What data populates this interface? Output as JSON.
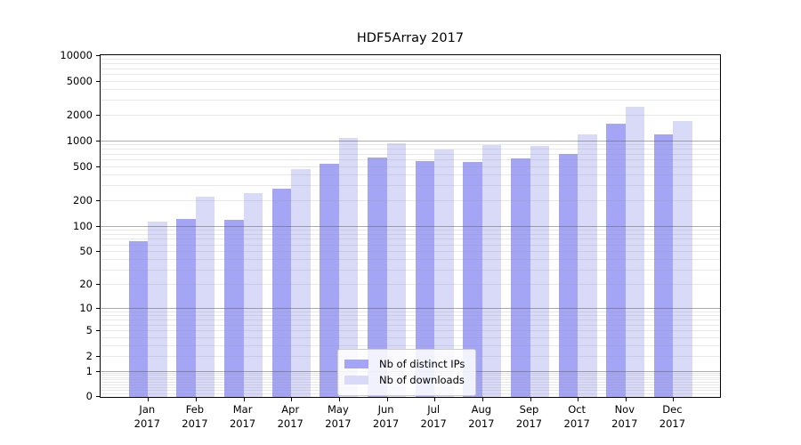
{
  "chart_data": {
    "type": "bar",
    "title": "HDF5Array 2017",
    "categories": [
      "Jan",
      "Feb",
      "Mar",
      "Apr",
      "May",
      "Jun",
      "Jul",
      "Aug",
      "Sep",
      "Oct",
      "Nov",
      "Dec"
    ],
    "category_sublabel": "2017",
    "series": [
      {
        "name": "Nb of distinct IPs",
        "color": "#a5a5f5",
        "values": [
          66,
          120,
          116,
          275,
          534,
          627,
          569,
          556,
          625,
          705,
          1584,
          1193
        ]
      },
      {
        "name": "Nb of downloads",
        "color": "#d9d9f8",
        "values": [
          112,
          219,
          243,
          464,
          1080,
          939,
          786,
          888,
          875,
          1175,
          2465,
          1689
        ]
      }
    ],
    "yscale": "log10(1+x)",
    "ylim": [
      0,
      10000
    ],
    "yticks": [
      0,
      1,
      2,
      5,
      10,
      20,
      50,
      100,
      200,
      500,
      1000,
      2000,
      5000,
      10000
    ],
    "grid": {
      "major_at": [
        1,
        10,
        100,
        1000
      ],
      "minor": true,
      "drawn_over_bars": true
    },
    "legend_position": "lower center",
    "axis_color": "#000000",
    "background_color": "#ffffff"
  }
}
